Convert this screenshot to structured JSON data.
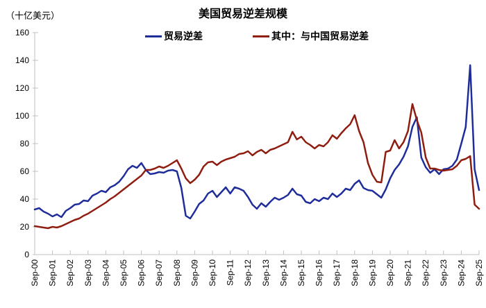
{
  "colors": {
    "axis": "#BFBFBF",
    "text": "#000000",
    "total_series": "#1F2D9B",
    "china_series": "#8F1D10"
  },
  "chart_data": {
    "type": "line",
    "title": "美国贸易逆差规模",
    "ylabel": "（十亿美元）",
    "xlabel": "",
    "ylim": [
      0,
      160
    ],
    "y_ticks": [
      0,
      20,
      40,
      60,
      80,
      100,
      120,
      140,
      160
    ],
    "grid": false,
    "legend_position": "top",
    "x_frequency": "quarterly",
    "x_tick_labels": [
      "Sep-00",
      "Sep-01",
      "Sep-02",
      "Sep-03",
      "Sep-04",
      "Sep-05",
      "Sep-06",
      "Sep-07",
      "Sep-08",
      "Sep-09",
      "Sep-10",
      "Sep-11",
      "Sep-12",
      "Sep-13",
      "Sep-14",
      "Sep-15",
      "Sep-16",
      "Sep-17",
      "Sep-18",
      "Sep-19",
      "Sep-20",
      "Sep-21",
      "Sep-22",
      "Sep-23",
      "Sep-24",
      "Sep-25"
    ],
    "series": [
      {
        "key": "total-deficit",
        "name": "贸易逆差",
        "color": "#1F2D9B",
        "values": [
          32.5,
          33.5,
          31,
          29.5,
          27.5,
          29,
          27,
          31.5,
          33.5,
          36,
          36.5,
          39,
          38.5,
          42.5,
          44,
          46,
          45,
          48.5,
          50,
          52.5,
          56.5,
          61.5,
          64,
          62.5,
          66,
          61,
          58,
          58.5,
          59.5,
          59,
          60.5,
          61,
          60,
          48,
          28,
          26,
          31,
          36.5,
          39,
          44,
          46,
          41.5,
          45,
          48.5,
          44,
          48.5,
          47.5,
          46,
          41.5,
          36,
          33,
          37,
          34.5,
          38,
          41,
          39.5,
          41,
          43,
          47.5,
          43.5,
          42.5,
          38,
          37,
          40,
          38.5,
          41,
          40,
          44,
          41.5,
          44,
          47.5,
          46.5,
          51,
          53.5,
          48,
          46.5,
          46,
          43.5,
          41,
          47,
          55,
          61,
          65,
          70.5,
          78,
          92,
          99,
          70,
          63,
          59,
          61.5,
          58,
          61.5,
          62,
          64,
          68.5,
          80,
          92,
          136.5,
          61.5,
          46.5
        ]
      },
      {
        "key": "china-deficit",
        "name": "其中：与中国贸易逆差",
        "color": "#8F1D10",
        "values": [
          20.5,
          20,
          19.5,
          19,
          20,
          19.5,
          20.5,
          22,
          23.5,
          25,
          26,
          28,
          29.5,
          31.5,
          33.5,
          35.5,
          37.5,
          40,
          42,
          44.5,
          47,
          49.5,
          52,
          54.5,
          57,
          61,
          61,
          62,
          63.5,
          62.5,
          64,
          66,
          68,
          62,
          55,
          51.5,
          54,
          57.5,
          63.5,
          66.5,
          67,
          64.5,
          67,
          68.5,
          69.5,
          70.5,
          72.5,
          73,
          74.5,
          71.5,
          74,
          75.5,
          73,
          75.5,
          76.5,
          78,
          79.5,
          81,
          88.5,
          83,
          85,
          81,
          79,
          76.5,
          79,
          78,
          81,
          86,
          83.5,
          87.5,
          91,
          94,
          100.5,
          89,
          81,
          66,
          57.5,
          52.5,
          52,
          74,
          75,
          82.5,
          76.5,
          81,
          89,
          108.5,
          97,
          88,
          70,
          62,
          62,
          61,
          60.5,
          61,
          61.5,
          64,
          68,
          69,
          71,
          36,
          33
        ]
      }
    ]
  }
}
